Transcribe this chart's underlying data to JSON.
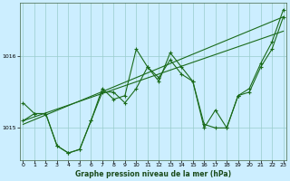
{
  "bg_color": "#cceeff",
  "grid_color": "#99cccc",
  "line_color": "#1a6b1a",
  "xlabel": "Graphe pression niveau de la mer (hPa)",
  "x_ticks": [
    0,
    1,
    2,
    3,
    4,
    5,
    6,
    7,
    8,
    9,
    10,
    11,
    12,
    13,
    14,
    15,
    16,
    17,
    18,
    19,
    20,
    21,
    22,
    23
  ],
  "ylim": [
    1014.55,
    1016.75
  ],
  "yticks": [
    1015,
    1016
  ],
  "xlim": [
    -0.3,
    23.3
  ],
  "trend1_x": [
    0,
    23
  ],
  "trend1_y": [
    1015.05,
    1016.55
  ],
  "trend2_x": [
    0,
    23
  ],
  "trend2_y": [
    1015.1,
    1016.35
  ],
  "data1_x": [
    0,
    1,
    2,
    3,
    4,
    5,
    6,
    7,
    8,
    9,
    10,
    11,
    12,
    13,
    14,
    15,
    16,
    17,
    18,
    19,
    20,
    21,
    22,
    23
  ],
  "data1_y": [
    1015.35,
    1015.2,
    1015.2,
    1014.75,
    1014.65,
    1014.7,
    1015.1,
    1015.55,
    1015.4,
    1015.45,
    1016.1,
    1015.85,
    1015.7,
    1015.95,
    1015.75,
    1015.65,
    1015.05,
    1015.0,
    1015.0,
    1015.45,
    1015.55,
    1015.9,
    1016.2,
    1016.65
  ],
  "data2_x": [
    0,
    1,
    2,
    3,
    4,
    5,
    6,
    7,
    8,
    9,
    10,
    11,
    12,
    13,
    14,
    15,
    16,
    17,
    18,
    19,
    20,
    21,
    22,
    23
  ],
  "data2_y": [
    1015.1,
    1015.2,
    1015.2,
    1014.75,
    1014.65,
    1014.7,
    1015.1,
    1015.5,
    1015.5,
    1015.35,
    1015.55,
    1015.85,
    1015.65,
    1016.05,
    1015.85,
    1015.65,
    1015.0,
    1015.25,
    1015.0,
    1015.45,
    1015.5,
    1015.85,
    1016.1,
    1016.55
  ]
}
